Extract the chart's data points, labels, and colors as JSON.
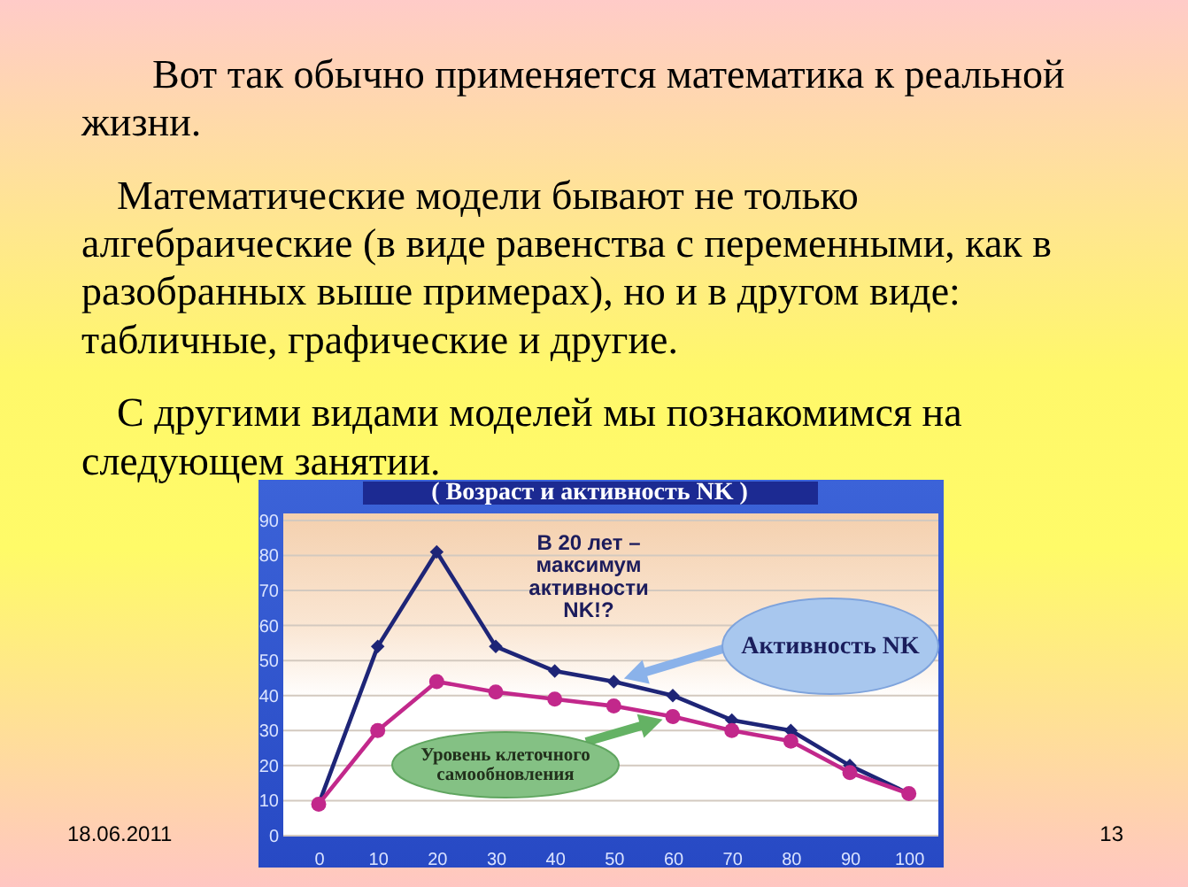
{
  "chart_data": {
    "type": "line",
    "title": "( Возраст и активность NK )",
    "x": [
      0,
      10,
      20,
      30,
      40,
      50,
      60,
      70,
      80,
      90,
      100
    ],
    "xlim": [
      -6,
      105
    ],
    "xticks": [
      0,
      10,
      20,
      30,
      40,
      50,
      60,
      70,
      80,
      90,
      100
    ],
    "ylim": [
      0,
      92
    ],
    "yticks": [
      0,
      10,
      20,
      30,
      40,
      50,
      60,
      70,
      80,
      90
    ],
    "grid": "y",
    "series": [
      {
        "name": "Активность NK",
        "color": "#1e2577",
        "marker": "diamond",
        "values": [
          9,
          54,
          81,
          54,
          47,
          44,
          40,
          33,
          30,
          20,
          12
        ]
      },
      {
        "name": "Уровень клеточного самообновления",
        "color": "#c2288b",
        "marker": "circle",
        "values": [
          9,
          30,
          44,
          41,
          39,
          37,
          34,
          30,
          27,
          18,
          12
        ]
      }
    ],
    "annotations": [
      "Вот так обычно применяется математика к реальной\nжизни.",
      "Математические модели бывают не только\nалгебраические (в виде равенства с переменными, как в\nразобранных выше примерах), но и в другом виде:\nтабличные, графические и другие.",
      "С другими видами моделей мы познакомимся на\nследующем занятии.",
      "В 20 лет – максимум активности NK!?",
      "18.06.2011",
      "13"
    ]
  }
}
